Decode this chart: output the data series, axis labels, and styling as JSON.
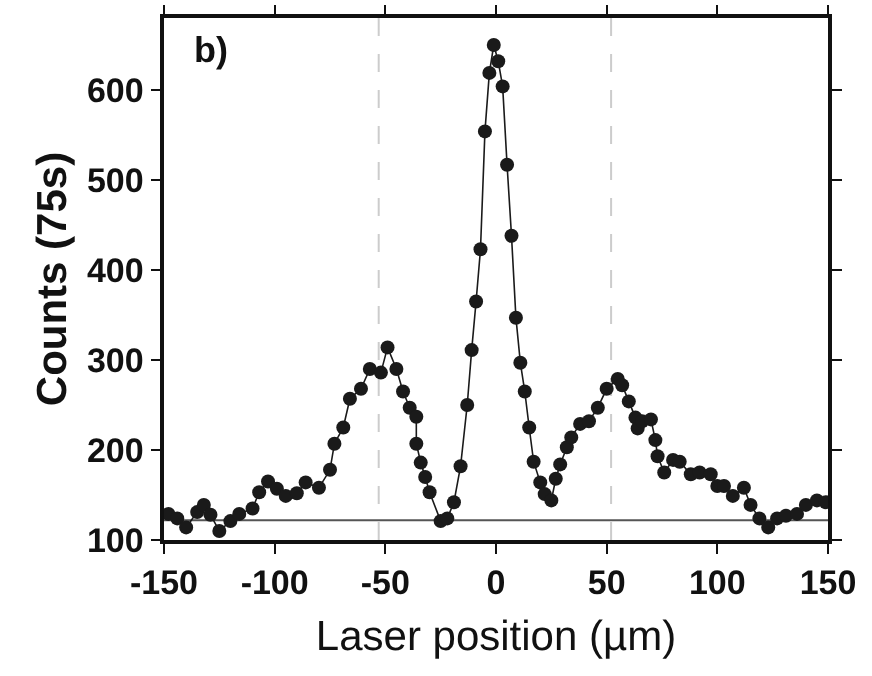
{
  "chart_data": {
    "type": "line",
    "xlabel": "Laser position (µm)",
    "ylabel": "Counts (75s)",
    "annotations": [
      "b)"
    ],
    "xlim": [
      -150,
      150
    ],
    "xticks": [
      -150,
      -100,
      -50,
      0,
      50,
      100,
      150
    ],
    "ylim": [
      100,
      680
    ],
    "yticks": [
      100,
      200,
      300,
      400,
      500,
      600
    ],
    "grid": false,
    "marker": "circle",
    "line_style": "solid",
    "ref_lines": [
      {
        "axis": "y",
        "value": 122,
        "label": null,
        "color": "#555555",
        "line_style": "solid"
      },
      {
        "axis": "x",
        "value": -53,
        "label": null,
        "color": "#cccccc",
        "line_style": "dashed"
      },
      {
        "axis": "x",
        "value": 52,
        "label": null,
        "color": "#cccccc",
        "line_style": "dashed"
      }
    ],
    "series": [
      {
        "color": "#1a1a1a",
        "x": [
          -148,
          -144,
          -140,
          -135,
          -132,
          -129,
          -125,
          -120,
          -116,
          -110,
          -107,
          -103,
          -99,
          -95,
          -90,
          -86,
          -80,
          -75,
          -73,
          -69,
          -66,
          -61,
          -57,
          -52,
          -49,
          -45,
          -42,
          -39,
          -36,
          -36,
          -34,
          -32,
          -30,
          -25,
          -22,
          -19,
          -16,
          -13,
          -11,
          -9,
          -7,
          -5,
          -3,
          -1,
          1,
          3,
          5,
          7,
          9,
          11,
          13,
          15,
          17,
          20,
          22,
          25,
          27,
          29,
          32,
          34,
          38,
          42,
          46,
          50,
          55,
          57,
          60,
          63,
          64,
          66,
          70,
          72,
          73,
          76,
          80,
          83,
          88,
          92,
          97,
          100,
          103,
          107,
          112,
          115,
          119,
          123,
          127,
          131,
          136,
          140,
          145,
          149
        ],
        "values": [
          129,
          124,
          114,
          131,
          139,
          128,
          110,
          121,
          129,
          135,
          153,
          165,
          157,
          149,
          152,
          164,
          158,
          178,
          207,
          225,
          257,
          268,
          290,
          286,
          314,
          290,
          265,
          247,
          237,
          207,
          186,
          170,
          153,
          121,
          124,
          142,
          182,
          250,
          311,
          365,
          423,
          554,
          619,
          650,
          632,
          604,
          517,
          438,
          347,
          297,
          265,
          225,
          187,
          164,
          151,
          144,
          168,
          184,
          203,
          214,
          229,
          232,
          247,
          268,
          279,
          272,
          254,
          236,
          224,
          232,
          234,
          211,
          193,
          175,
          189,
          187,
          173,
          175,
          173,
          160,
          160,
          149,
          158,
          139,
          124,
          114,
          124,
          127,
          129,
          139,
          144,
          142
        ]
      }
    ]
  }
}
